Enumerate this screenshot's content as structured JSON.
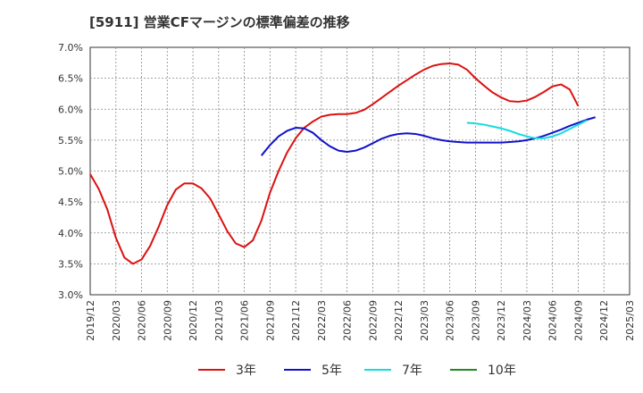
{
  "chart_data": {
    "type": "line",
    "title": "[5911]  営業CFマージンの標準偏差の推移",
    "xlabel": "",
    "ylabel": "",
    "ylim": [
      3.0,
      7.0
    ],
    "y_ticks": [
      "3.0%",
      "3.5%",
      "4.0%",
      "4.5%",
      "5.0%",
      "5.5%",
      "6.0%",
      "6.5%",
      "7.0%"
    ],
    "x_ticks": [
      "2019/12",
      "2020/03",
      "2020/06",
      "2020/09",
      "2020/12",
      "2021/03",
      "2021/06",
      "2021/09",
      "2021/12",
      "2022/03",
      "2022/06",
      "2022/09",
      "2022/12",
      "2023/03",
      "2023/06",
      "2023/09",
      "2023/12",
      "2024/03",
      "2024/06",
      "2024/09",
      "2024/12",
      "2025/03"
    ],
    "x_start": "2019/12",
    "grid": true,
    "legend_position": "bottom",
    "series": [
      {
        "name": "3年",
        "color": "#dd1111",
        "start": "2019/12",
        "values": [
          4.95,
          4.71,
          4.38,
          3.92,
          3.6,
          3.5,
          3.57,
          3.79,
          4.1,
          4.45,
          4.7,
          4.8,
          4.8,
          4.72,
          4.56,
          4.3,
          4.03,
          3.83,
          3.77,
          3.88,
          4.2,
          4.65,
          5.0,
          5.3,
          5.53,
          5.7,
          5.8,
          5.88,
          5.91,
          5.92,
          5.92,
          5.94,
          5.99,
          6.08,
          6.18,
          6.28,
          6.38,
          6.47,
          6.56,
          6.64,
          6.7,
          6.73,
          6.74,
          6.72,
          6.64,
          6.5,
          6.38,
          6.27,
          6.19,
          6.13,
          6.12,
          6.14,
          6.2,
          6.28,
          6.37,
          6.4,
          6.32,
          6.05
        ]
      },
      {
        "name": "5年",
        "color": "#1111cc",
        "start": "2021/08",
        "values": [
          5.25,
          5.42,
          5.56,
          5.65,
          5.7,
          5.69,
          5.62,
          5.5,
          5.4,
          5.33,
          5.31,
          5.33,
          5.38,
          5.45,
          5.52,
          5.57,
          5.6,
          5.61,
          5.6,
          5.57,
          5.53,
          5.5,
          5.48,
          5.47,
          5.46,
          5.46,
          5.46,
          5.46,
          5.46,
          5.47,
          5.48,
          5.5,
          5.53,
          5.57,
          5.62,
          5.67,
          5.73,
          5.78,
          5.83,
          5.87
        ]
      },
      {
        "name": "7年",
        "color": "#11dddd",
        "start": "2023/08",
        "values": [
          5.78,
          5.77,
          5.75,
          5.72,
          5.69,
          5.65,
          5.6,
          5.56,
          5.53,
          5.53,
          5.56,
          5.61,
          5.68,
          5.75,
          5.82
        ]
      },
      {
        "name": "10年",
        "color": "#228822",
        "start": "2024/09",
        "values": []
      }
    ]
  }
}
